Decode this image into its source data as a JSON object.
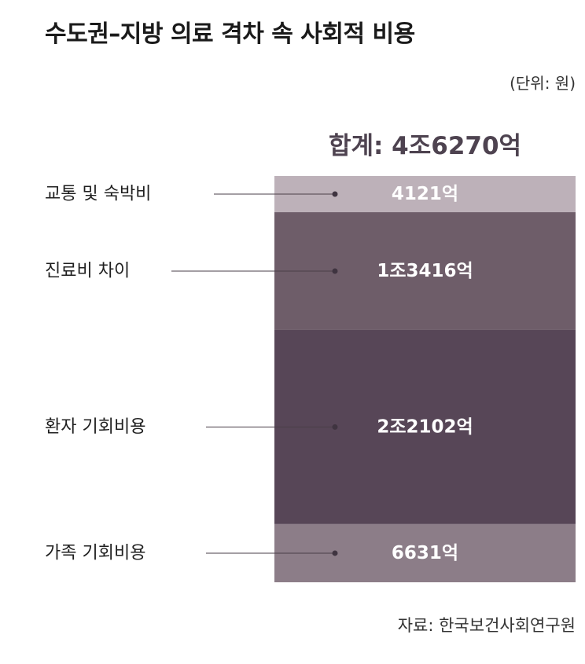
{
  "header": {
    "title": "수도권–지방 의료 격차 속 사회적 비용",
    "unit": "(단위: 원)",
    "total": "합계: 4조6270억"
  },
  "footer": {
    "source": "자료: 한국보건사회연구원"
  },
  "chart_data": {
    "type": "stacked-bar",
    "title": "수도권–지방 의료 격차 속 사회적 비용",
    "unit": "(단위: 원)",
    "total_label": "합계: 4조6270억",
    "total_value": 46270,
    "categories": [
      "교통 및 숙박비",
      "진료비 차이",
      "환자 기회비용",
      "가족 기회비용"
    ],
    "values": [
      4121,
      13416,
      22102,
      6631
    ],
    "value_labels": [
      "4121억",
      "1조3416억",
      "2조2102억",
      "6631억"
    ],
    "colors": [
      "#bdb1b9",
      "#6e5d69",
      "#574657",
      "#8c7d88"
    ],
    "source": "자료: 한국보건사회연구원"
  }
}
